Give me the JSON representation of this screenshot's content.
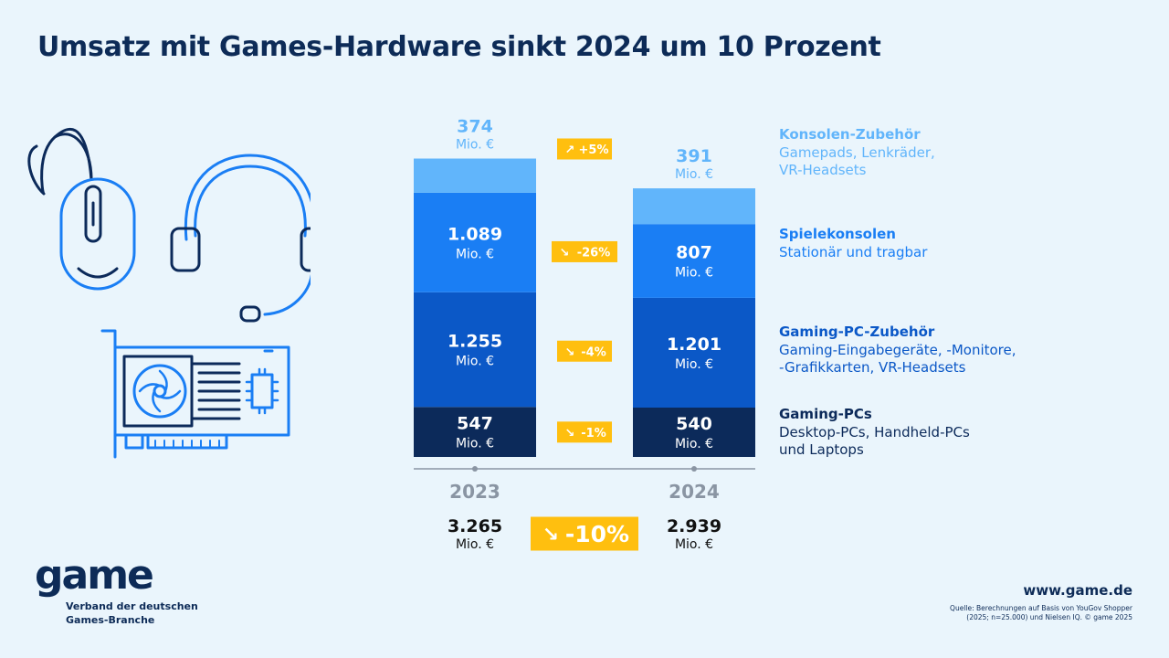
{
  "title": "Umsatz mit Games-Hardware sinkt 2024 um 10 Prozent",
  "logo": {
    "word": "game",
    "sub_line1": "Verband der deutschen",
    "sub_line2": "Games-Branche"
  },
  "url": "www.game.de",
  "source": {
    "line1": "Quelle: Berechnungen auf Basis von YouGov Shopper",
    "line2": "(2025; n=25.000) und Nielsen IQ. © game 2025"
  },
  "colors": {
    "console_accessories": "#61b5fb",
    "consoles": "#1a7ef4",
    "pc_accessories": "#0b58c7",
    "gaming_pcs": "#0c2a5a",
    "badge": "#ffbf0f",
    "title": "#0d2b57",
    "year_label": "#8a95a3"
  },
  "chart_data": {
    "type": "bar",
    "stacked": true,
    "unit": "Mio. €",
    "categories": [
      "2023",
      "2024"
    ],
    "series": [
      {
        "key": "gaming_pcs",
        "name": "Gaming-PCs",
        "description": [
          "Desktop-PCs, Handheld-PCs",
          "und Laptops"
        ],
        "values": [
          547,
          540
        ],
        "labels": [
          "547",
          "540"
        ],
        "change": "-1%"
      },
      {
        "key": "pc_accessories",
        "name": "Gaming-PC-Zubehör",
        "description": [
          "Gaming-Eingabegeräte, -Monitore,",
          "-Grafikkarten, VR-Headsets"
        ],
        "values": [
          1255,
          1201
        ],
        "labels": [
          "1.255",
          "1.201"
        ],
        "change": "-4%"
      },
      {
        "key": "consoles",
        "name": "Spielekonsolen",
        "description": [
          "Stationär und tragbar"
        ],
        "values": [
          1089,
          807
        ],
        "labels": [
          "1.089",
          "807"
        ],
        "change": "-26%"
      },
      {
        "key": "console_accessories",
        "name": "Konsolen-Zubehör",
        "description": [
          "Gamepads, Lenkräder,",
          "VR-Headsets"
        ],
        "values": [
          374,
          391
        ],
        "labels": [
          "374",
          "391"
        ],
        "change": "+5%"
      }
    ],
    "totals": {
      "values": [
        3265,
        2939
      ],
      "labels": [
        "3.265",
        "2.939"
      ],
      "change": "-10%"
    }
  }
}
